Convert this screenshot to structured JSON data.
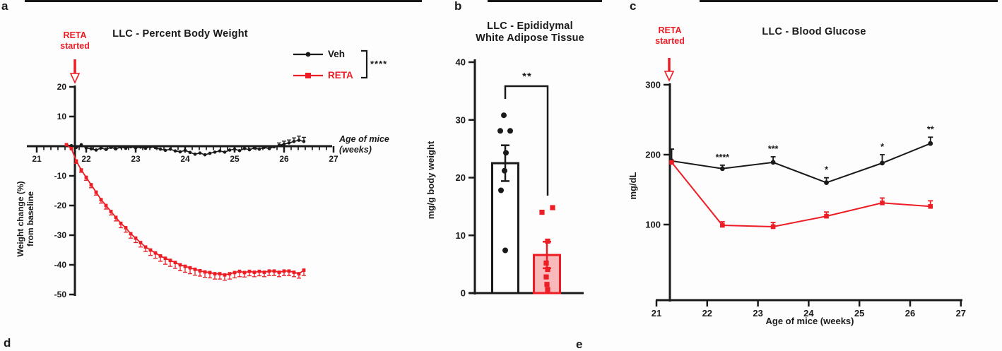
{
  "page": {
    "panel_labels": {
      "a": "a",
      "b": "b",
      "c": "c",
      "d": "d",
      "e": "e"
    },
    "accent_red": "#ec1d25",
    "ink": "#1a1a1a"
  },
  "chart_data": [
    {
      "panel": "a",
      "type": "line",
      "title": "LLC - Percent Body Weight",
      "annotation": {
        "line1": "RETA",
        "line2": "started"
      },
      "xlabel": {
        "line1": "Age of mice",
        "line2": "(weeks)"
      },
      "ylabel": {
        "line1": "Weight change (%)",
        "line2": "from baseline"
      },
      "xlim": [
        21,
        27
      ],
      "ylim": [
        -50,
        20
      ],
      "xticks": [
        21,
        22,
        23,
        24,
        25,
        26,
        27
      ],
      "yticks": [
        20,
        10,
        -10,
        -20,
        -30,
        -40,
        -50
      ],
      "legend": {
        "items": [
          {
            "label": "Veh",
            "color": "#1a1a1a",
            "marker": "circle"
          },
          {
            "label": "RETA",
            "color": "#ec1d25",
            "marker": "square"
          }
        ],
        "significance": "****"
      },
      "series": [
        {
          "name": "Veh",
          "color": "#1a1a1a",
          "marker": "circle",
          "x": [
            21.6,
            21.7,
            21.8,
            21.9,
            22.0,
            22.1,
            22.2,
            22.3,
            22.4,
            22.5,
            22.6,
            22.7,
            22.8,
            22.9,
            23.0,
            23.1,
            23.2,
            23.3,
            23.4,
            23.5,
            23.6,
            23.7,
            23.8,
            23.9,
            24.0,
            24.1,
            24.2,
            24.3,
            24.4,
            24.5,
            24.6,
            24.7,
            24.8,
            24.9,
            25.0,
            25.1,
            25.2,
            25.3,
            25.4,
            25.5,
            25.6,
            25.7,
            25.8,
            25.9,
            26.0,
            26.1,
            26.2,
            26.3,
            26.4
          ],
          "y": [
            0.4,
            0.2,
            -0.4,
            0.5,
            -0.6,
            -0.9,
            -1.3,
            -0.6,
            -1.1,
            -0.4,
            -0.9,
            -0.3,
            -0.7,
            -0.2,
            -0.6,
            -0.3,
            -0.7,
            -0.2,
            -0.5,
            -1.0,
            -1.4,
            -1.0,
            -1.6,
            -1.9,
            -1.4,
            -2.1,
            -2.7,
            -2.3,
            -2.9,
            -2.4,
            -2.0,
            -1.6,
            -2.0,
            -1.3,
            -1.0,
            -1.5,
            -0.8,
            -1.2,
            -0.6,
            -1.0,
            -0.4,
            -0.8,
            -0.2,
            0.3,
            0.7,
            1.1,
            1.6,
            2.0,
            1.6
          ],
          "err_up": [
            0,
            0,
            0,
            0,
            0,
            0,
            0,
            0,
            0,
            0,
            0,
            0,
            0,
            0,
            0,
            0,
            0,
            0,
            0,
            0,
            0,
            0,
            0,
            0,
            0,
            0,
            0,
            0,
            0,
            0,
            0,
            0,
            0,
            0,
            0,
            0,
            0,
            0,
            0,
            0,
            0,
            0,
            0,
            0.8,
            1.0,
            1.0,
            1.2,
            1.4,
            1.4
          ]
        },
        {
          "name": "RETA",
          "color": "#ec1d25",
          "marker": "square",
          "x": [
            21.6,
            21.7,
            21.8,
            21.9,
            22.0,
            22.1,
            22.2,
            22.3,
            22.4,
            22.5,
            22.6,
            22.7,
            22.8,
            22.9,
            23.0,
            23.1,
            23.2,
            23.3,
            23.4,
            23.5,
            23.6,
            23.7,
            23.8,
            23.9,
            24.0,
            24.1,
            24.2,
            24.3,
            24.4,
            24.5,
            24.6,
            24.7,
            24.8,
            24.9,
            25.0,
            25.1,
            25.2,
            25.3,
            25.4,
            25.5,
            25.6,
            25.7,
            25.8,
            25.9,
            26.0,
            26.1,
            26.2,
            26.3,
            26.4
          ],
          "y": [
            0.5,
            -0.8,
            -5.0,
            -8.0,
            -10.5,
            -13.0,
            -15.5,
            -18.0,
            -20.0,
            -22.0,
            -24.0,
            -26.0,
            -27.5,
            -29.5,
            -31.0,
            -32.5,
            -34.0,
            -35.0,
            -36.0,
            -37.0,
            -37.8,
            -38.5,
            -39.2,
            -40.0,
            -40.5,
            -41.0,
            -41.5,
            -42.0,
            -42.4,
            -42.6,
            -43.0,
            -43.0,
            -43.4,
            -43.0,
            -42.6,
            -42.2,
            -42.6,
            -42.2,
            -42.5,
            -42.2,
            -42.5,
            -42.1,
            -42.1,
            -42.5,
            -42.1,
            -42.1,
            -42.5,
            -43.0,
            -41.8
          ],
          "err_down": [
            0,
            0,
            0.8,
            0.8,
            1.0,
            1.0,
            1.0,
            1.2,
            1.2,
            1.2,
            1.2,
            1.5,
            1.5,
            1.5,
            1.5,
            1.5,
            1.5,
            1.8,
            1.8,
            1.8,
            2.0,
            2.0,
            2.0,
            2.0,
            2.0,
            2.0,
            2.0,
            1.8,
            1.8,
            1.8,
            1.8,
            1.8,
            1.8,
            1.8,
            1.8,
            1.8,
            1.5,
            1.5,
            1.5,
            1.5,
            1.5,
            1.5,
            1.5,
            1.5,
            1.5,
            1.5,
            1.5,
            1.5,
            1.8
          ]
        }
      ]
    },
    {
      "panel": "b",
      "type": "bar",
      "title": {
        "line1": "LLC - Epididymal",
        "line2": "White Adipose Tissue"
      },
      "ylabel": "mg/g body weight",
      "ylim": [
        0,
        40
      ],
      "yticks": [
        0,
        10,
        20,
        30,
        40
      ],
      "significance": "**",
      "bars": [
        {
          "name": "Veh",
          "mean": 22.5,
          "err": 3.1,
          "fill": "#ffffff",
          "edge": "#1a1a1a",
          "marker": "circle",
          "points": [
            30.8,
            28.1,
            28.1,
            24.3,
            21.2,
            17.8,
            7.4
          ],
          "point_dx": [
            -2,
            -7,
            7,
            1,
            -1,
            -6,
            0
          ]
        },
        {
          "name": "RETA",
          "mean": 6.6,
          "err": 2.3,
          "fill": "#f8b9bb",
          "edge": "#ec1d25",
          "marker": "square",
          "points": [
            14.0,
            14.8,
            9.0,
            5.2,
            4.1,
            2.8,
            1.5,
            0.6
          ],
          "point_dx": [
            -7,
            8,
            1,
            -1,
            1,
            -1,
            0,
            1
          ]
        }
      ]
    },
    {
      "panel": "c",
      "type": "line",
      "title": "LLC - Blood Glucose",
      "annotation": {
        "line1": "RETA",
        "line2": "started"
      },
      "xlabel": "Age of mice (weeks)",
      "ylabel": "mg/dL",
      "xlim": [
        21,
        27
      ],
      "xticks": [
        21,
        22,
        23,
        24,
        25,
        26,
        27
      ],
      "yticks": [
        100,
        200,
        300
      ],
      "series": [
        {
          "name": "Veh",
          "color": "#1a1a1a",
          "marker": "circle",
          "x": [
            21.3,
            22.3,
            23.3,
            24.35,
            25.45,
            26.4
          ],
          "y": [
            191,
            180,
            189,
            160,
            188,
            216
          ],
          "err_up": [
            17,
            5,
            8,
            7,
            12,
            9
          ],
          "sig": [
            "",
            "****",
            "***",
            "*",
            "*",
            "**"
          ]
        },
        {
          "name": "RETA",
          "color": "#ec1d25",
          "marker": "square",
          "x": [
            21.3,
            22.3,
            23.3,
            24.35,
            25.45,
            26.4
          ],
          "y": [
            189,
            99,
            97,
            112,
            131,
            126
          ],
          "err_up": [
            0,
            5,
            6,
            6,
            7,
            8
          ],
          "sig": [
            "",
            "",
            "",
            "",
            "",
            ""
          ]
        }
      ]
    }
  ]
}
